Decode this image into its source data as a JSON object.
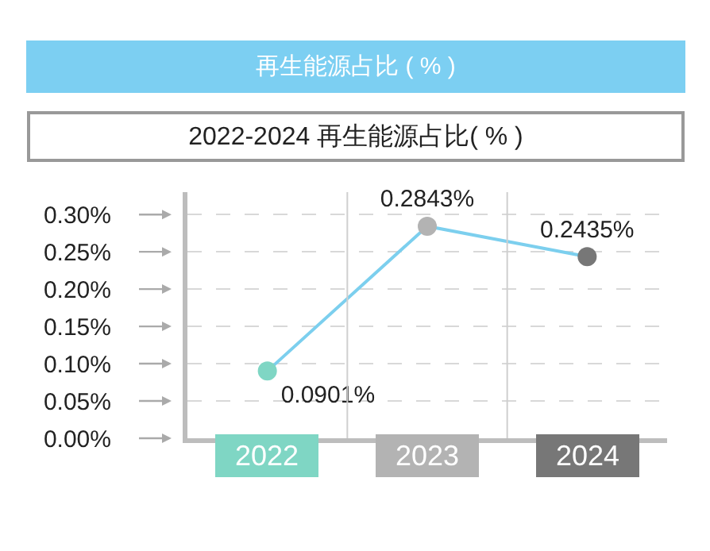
{
  "chart_data": {
    "type": "line",
    "title": "再生能源占比 ( % )",
    "subtitle": "2022-2024 再生能源占比( % )",
    "categories": [
      "2022",
      "2023",
      "2024"
    ],
    "series": [
      {
        "color": "#7ccfee",
        "colors": [
          "#7fd6c4",
          "#b3b3b3",
          "#777777"
        ],
        "values": [
          0.0901,
          0.2843,
          0.2435
        ],
        "value_labels": [
          "0.0901%",
          "0.2843%",
          "0.2435%"
        ]
      }
    ],
    "ylim": [
      0,
      0.33
    ],
    "yticks": [
      {
        "value": 0,
        "label": "0.00%"
      },
      {
        "value": 0.05,
        "label": "0.05%"
      },
      {
        "value": 0.1,
        "label": "0.10%"
      },
      {
        "value": 0.15,
        "label": "0.15%"
      },
      {
        "value": 0.2,
        "label": "0.20%"
      },
      {
        "value": 0.25,
        "label": "0.25%"
      },
      {
        "value": 0.3,
        "label": "0.30%"
      }
    ],
    "grid": true,
    "marker": "circle",
    "line_style": "solid"
  }
}
